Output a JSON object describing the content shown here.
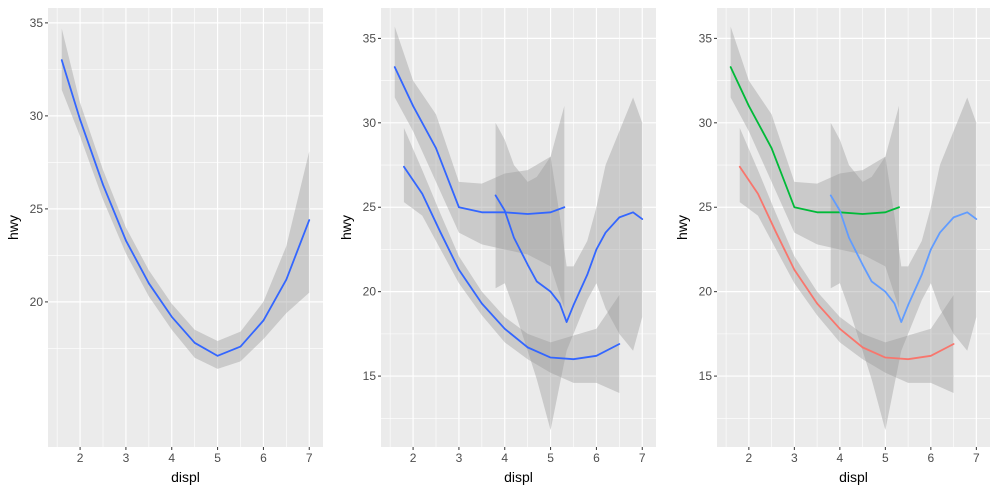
{
  "chart_data": [
    {
      "type": "line",
      "xlabel": "displ",
      "ylabel": "hwy",
      "xlim": [
        1.3,
        7.3
      ],
      "ylim": [
        12.2,
        35.8
      ],
      "x_ticks": [
        2,
        3,
        4,
        5,
        6,
        7
      ],
      "y_ticks": [
        20,
        25,
        30,
        35
      ],
      "grid": true,
      "legend": "none",
      "series": [
        {
          "color": "#3366FF",
          "points": [
            [
              1.6,
              33.0
            ],
            [
              2.0,
              29.8
            ],
            [
              2.5,
              26.3
            ],
            [
              3.0,
              23.3
            ],
            [
              3.5,
              21.0
            ],
            [
              4.0,
              19.2
            ],
            [
              4.5,
              17.8
            ],
            [
              5.0,
              17.1
            ],
            [
              5.5,
              17.6
            ],
            [
              6.0,
              19.0
            ],
            [
              6.5,
              21.2
            ],
            [
              7.0,
              24.4
            ]
          ],
          "band": [
            [
              1.6,
              31.4,
              34.7
            ],
            [
              2.0,
              28.9,
              30.7
            ],
            [
              2.5,
              25.5,
              27.1
            ],
            [
              3.0,
              22.6,
              24.0
            ],
            [
              3.5,
              20.3,
              21.7
            ],
            [
              4.0,
              18.5,
              19.9
            ],
            [
              4.5,
              17.0,
              18.5
            ],
            [
              5.0,
              16.4,
              17.9
            ],
            [
              5.5,
              16.8,
              18.4
            ],
            [
              6.0,
              18.0,
              20.0
            ],
            [
              6.5,
              19.4,
              23.0
            ],
            [
              7.0,
              20.5,
              28.1
            ]
          ]
        }
      ]
    },
    {
      "type": "line",
      "xlabel": "displ",
      "ylabel": "hwy",
      "xlim": [
        1.3,
        7.3
      ],
      "ylim": [
        10.8,
        36.8
      ],
      "x_ticks": [
        2,
        3,
        4,
        5,
        6,
        7
      ],
      "y_ticks": [
        15,
        20,
        25,
        30,
        35
      ],
      "grid": true,
      "legend": "none",
      "series": [
        {
          "color": "#3366FF",
          "points": [
            [
              1.6,
              33.3
            ],
            [
              2.0,
              31.0
            ],
            [
              2.5,
              28.5
            ],
            [
              3.0,
              25.0
            ],
            [
              3.5,
              24.7
            ],
            [
              4.0,
              24.7
            ],
            [
              4.5,
              24.6
            ],
            [
              5.0,
              24.7
            ],
            [
              5.3,
              25.0
            ]
          ],
          "band": [
            [
              1.6,
              31.5,
              35.7
            ],
            [
              2.0,
              29.5,
              32.5
            ],
            [
              2.5,
              26.5,
              30.5
            ],
            [
              3.0,
              23.5,
              26.5
            ],
            [
              3.5,
              22.8,
              26.4
            ],
            [
              4.0,
              22.5,
              27.0
            ],
            [
              4.5,
              22.2,
              27.2
            ],
            [
              5.0,
              21.5,
              28.0
            ],
            [
              5.3,
              19.0,
              31.0
            ]
          ]
        },
        {
          "color": "#3366FF",
          "points": [
            [
              1.8,
              27.4
            ],
            [
              2.2,
              25.8
            ],
            [
              2.6,
              23.5
            ],
            [
              3.0,
              21.3
            ],
            [
              3.5,
              19.3
            ],
            [
              4.0,
              17.8
            ],
            [
              4.5,
              16.7
            ],
            [
              5.0,
              16.1
            ],
            [
              5.5,
              16.0
            ],
            [
              6.0,
              16.2
            ],
            [
              6.5,
              16.9
            ]
          ],
          "band": [
            [
              1.8,
              25.3,
              29.7
            ],
            [
              2.2,
              24.5,
              27.2
            ],
            [
              2.6,
              22.5,
              24.6
            ],
            [
              3.0,
              20.5,
              22.1
            ],
            [
              3.5,
              18.6,
              20.0
            ],
            [
              4.0,
              17.0,
              18.5
            ],
            [
              4.5,
              16.0,
              17.5
            ],
            [
              5.0,
              15.2,
              17.0
            ],
            [
              5.5,
              14.6,
              17.4
            ],
            [
              6.0,
              14.6,
              17.8
            ],
            [
              6.5,
              14.0,
              19.8
            ]
          ]
        },
        {
          "color": "#3366FF",
          "points": [
            [
              3.8,
              25.7
            ],
            [
              4.0,
              24.8
            ],
            [
              4.2,
              23.2
            ],
            [
              4.5,
              21.6
            ],
            [
              4.7,
              20.6
            ],
            [
              5.0,
              20.0
            ],
            [
              5.2,
              19.3
            ],
            [
              5.35,
              18.2
            ],
            [
              5.5,
              19.2
            ],
            [
              5.8,
              21.0
            ],
            [
              6.0,
              22.5
            ],
            [
              6.2,
              23.5
            ],
            [
              6.5,
              24.4
            ],
            [
              6.8,
              24.7
            ],
            [
              7.0,
              24.3
            ]
          ],
          "band": [
            [
              3.8,
              20.2,
              30.0
            ],
            [
              4.0,
              20.5,
              29.0
            ],
            [
              4.2,
              19.0,
              27.5
            ],
            [
              4.5,
              16.5,
              26.5
            ],
            [
              4.7,
              14.8,
              26.8
            ],
            [
              5.0,
              11.8,
              28.0
            ],
            [
              5.2,
              14.5,
              24.5
            ],
            [
              5.35,
              16.5,
              21.5
            ],
            [
              5.5,
              17.5,
              21.5
            ],
            [
              5.8,
              19.5,
              23.0
            ],
            [
              6.0,
              20.5,
              25.0
            ],
            [
              6.2,
              19.0,
              27.5
            ],
            [
              6.5,
              17.5,
              29.5
            ],
            [
              6.8,
              16.5,
              31.5
            ],
            [
              7.0,
              18.5,
              30.0
            ]
          ]
        }
      ]
    },
    {
      "type": "line",
      "xlabel": "displ",
      "ylabel": "hwy",
      "xlim": [
        1.3,
        7.3
      ],
      "ylim": [
        10.8,
        36.8
      ],
      "x_ticks": [
        2,
        3,
        4,
        5,
        6,
        7
      ],
      "y_ticks": [
        15,
        20,
        25,
        30,
        35
      ],
      "grid": true,
      "legend": "none",
      "series": [
        {
          "color": "#00BA38",
          "points": [
            [
              1.6,
              33.3
            ],
            [
              2.0,
              31.0
            ],
            [
              2.5,
              28.5
            ],
            [
              3.0,
              25.0
            ],
            [
              3.5,
              24.7
            ],
            [
              4.0,
              24.7
            ],
            [
              4.5,
              24.6
            ],
            [
              5.0,
              24.7
            ],
            [
              5.3,
              25.0
            ]
          ],
          "band": [
            [
              1.6,
              31.5,
              35.7
            ],
            [
              2.0,
              29.5,
              32.5
            ],
            [
              2.5,
              26.5,
              30.5
            ],
            [
              3.0,
              23.5,
              26.5
            ],
            [
              3.5,
              22.8,
              26.4
            ],
            [
              4.0,
              22.5,
              27.0
            ],
            [
              4.5,
              22.2,
              27.2
            ],
            [
              5.0,
              21.5,
              28.0
            ],
            [
              5.3,
              19.0,
              31.0
            ]
          ]
        },
        {
          "color": "#F8766D",
          "points": [
            [
              1.8,
              27.4
            ],
            [
              2.2,
              25.8
            ],
            [
              2.6,
              23.5
            ],
            [
              3.0,
              21.3
            ],
            [
              3.5,
              19.3
            ],
            [
              4.0,
              17.8
            ],
            [
              4.5,
              16.7
            ],
            [
              5.0,
              16.1
            ],
            [
              5.5,
              16.0
            ],
            [
              6.0,
              16.2
            ],
            [
              6.5,
              16.9
            ]
          ],
          "band": [
            [
              1.8,
              25.3,
              29.7
            ],
            [
              2.2,
              24.5,
              27.2
            ],
            [
              2.6,
              22.5,
              24.6
            ],
            [
              3.0,
              20.5,
              22.1
            ],
            [
              3.5,
              18.6,
              20.0
            ],
            [
              4.0,
              17.0,
              18.5
            ],
            [
              4.5,
              16.0,
              17.5
            ],
            [
              5.0,
              15.2,
              17.0
            ],
            [
              5.5,
              14.6,
              17.4
            ],
            [
              6.0,
              14.6,
              17.8
            ],
            [
              6.5,
              14.0,
              19.8
            ]
          ]
        },
        {
          "color": "#619CFF",
          "points": [
            [
              3.8,
              25.7
            ],
            [
              4.0,
              24.8
            ],
            [
              4.2,
              23.2
            ],
            [
              4.5,
              21.6
            ],
            [
              4.7,
              20.6
            ],
            [
              5.0,
              20.0
            ],
            [
              5.2,
              19.3
            ],
            [
              5.35,
              18.2
            ],
            [
              5.5,
              19.2
            ],
            [
              5.8,
              21.0
            ],
            [
              6.0,
              22.5
            ],
            [
              6.2,
              23.5
            ],
            [
              6.5,
              24.4
            ],
            [
              6.8,
              24.7
            ],
            [
              7.0,
              24.3
            ]
          ],
          "band": [
            [
              3.8,
              20.2,
              30.0
            ],
            [
              4.0,
              20.5,
              29.0
            ],
            [
              4.2,
              19.0,
              27.5
            ],
            [
              4.5,
              16.5,
              26.5
            ],
            [
              4.7,
              14.8,
              26.8
            ],
            [
              5.0,
              11.8,
              28.0
            ],
            [
              5.2,
              14.5,
              24.5
            ],
            [
              5.35,
              16.5,
              21.5
            ],
            [
              5.5,
              17.5,
              21.5
            ],
            [
              5.8,
              19.5,
              23.0
            ],
            [
              6.0,
              20.5,
              25.0
            ],
            [
              6.2,
              19.0,
              27.5
            ],
            [
              6.5,
              17.5,
              29.5
            ],
            [
              6.8,
              16.5,
              31.5
            ],
            [
              7.0,
              18.5,
              30.0
            ]
          ]
        }
      ]
    }
  ],
  "theme": {
    "panel_bg": "#EBEBEB",
    "grid_major": "#FFFFFF",
    "band_fill": "#999999",
    "tick_text": "#4D4D4D",
    "axis_text": "#000000"
  }
}
